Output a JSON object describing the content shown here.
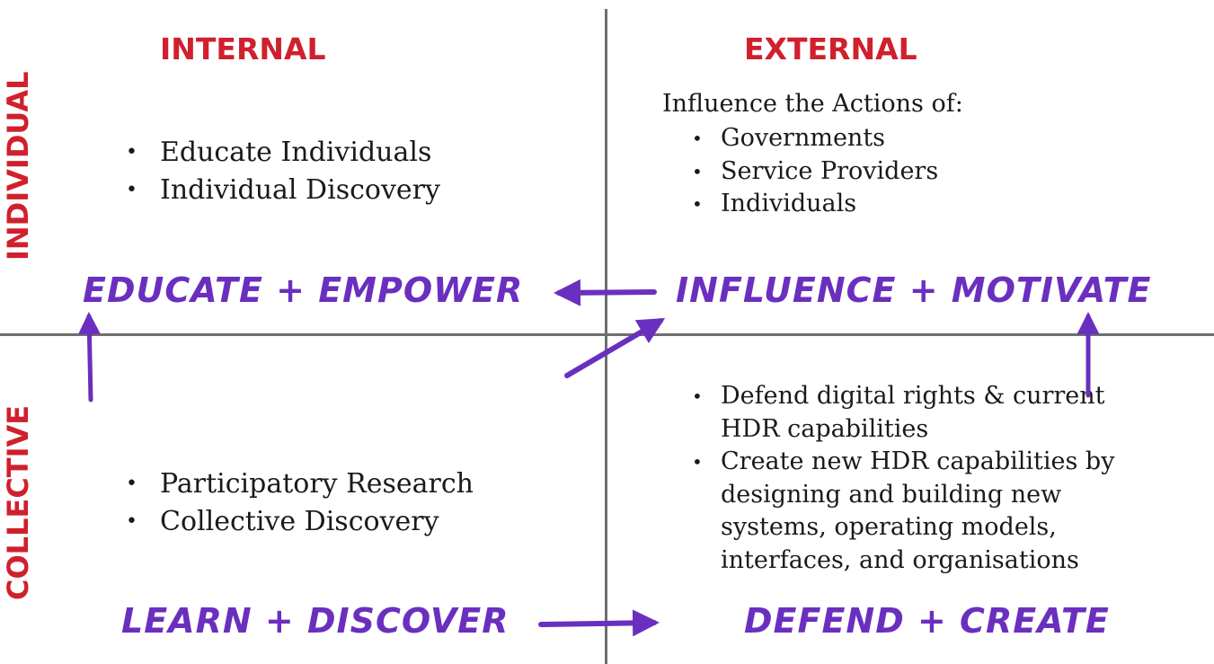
{
  "columns": {
    "internal": "INTERNAL",
    "external": "EXTERNAL"
  },
  "rows": {
    "individual": "INDIVIDUAL",
    "collective": "COLLECTIVE"
  },
  "quadrants": {
    "top_left": {
      "items": [
        "Educate Individuals",
        "Individual Discovery"
      ],
      "label": "EDUCATE + EMPOWER"
    },
    "top_right": {
      "intro": "Influence the Actions of:",
      "items": [
        "Governments",
        "Service Providers",
        "Individuals"
      ],
      "label": "INFLUENCE + MOTIVATE"
    },
    "bottom_left": {
      "items": [
        "Participatory Research",
        "Collective Discovery"
      ],
      "label": "LEARN + DISCOVER"
    },
    "bottom_right": {
      "items": [
        "Defend digital rights & current HDR capabilities",
        "Create new HDR capabilities by designing and building new systems, operating models, interfaces, and organisations"
      ],
      "label": "DEFEND + CREATE"
    }
  },
  "colors": {
    "heading_red": "#d0202e",
    "annotation_purple": "#6a2fbf",
    "axis_gray": "#6e6e6e",
    "text": "#1a1a1a"
  }
}
